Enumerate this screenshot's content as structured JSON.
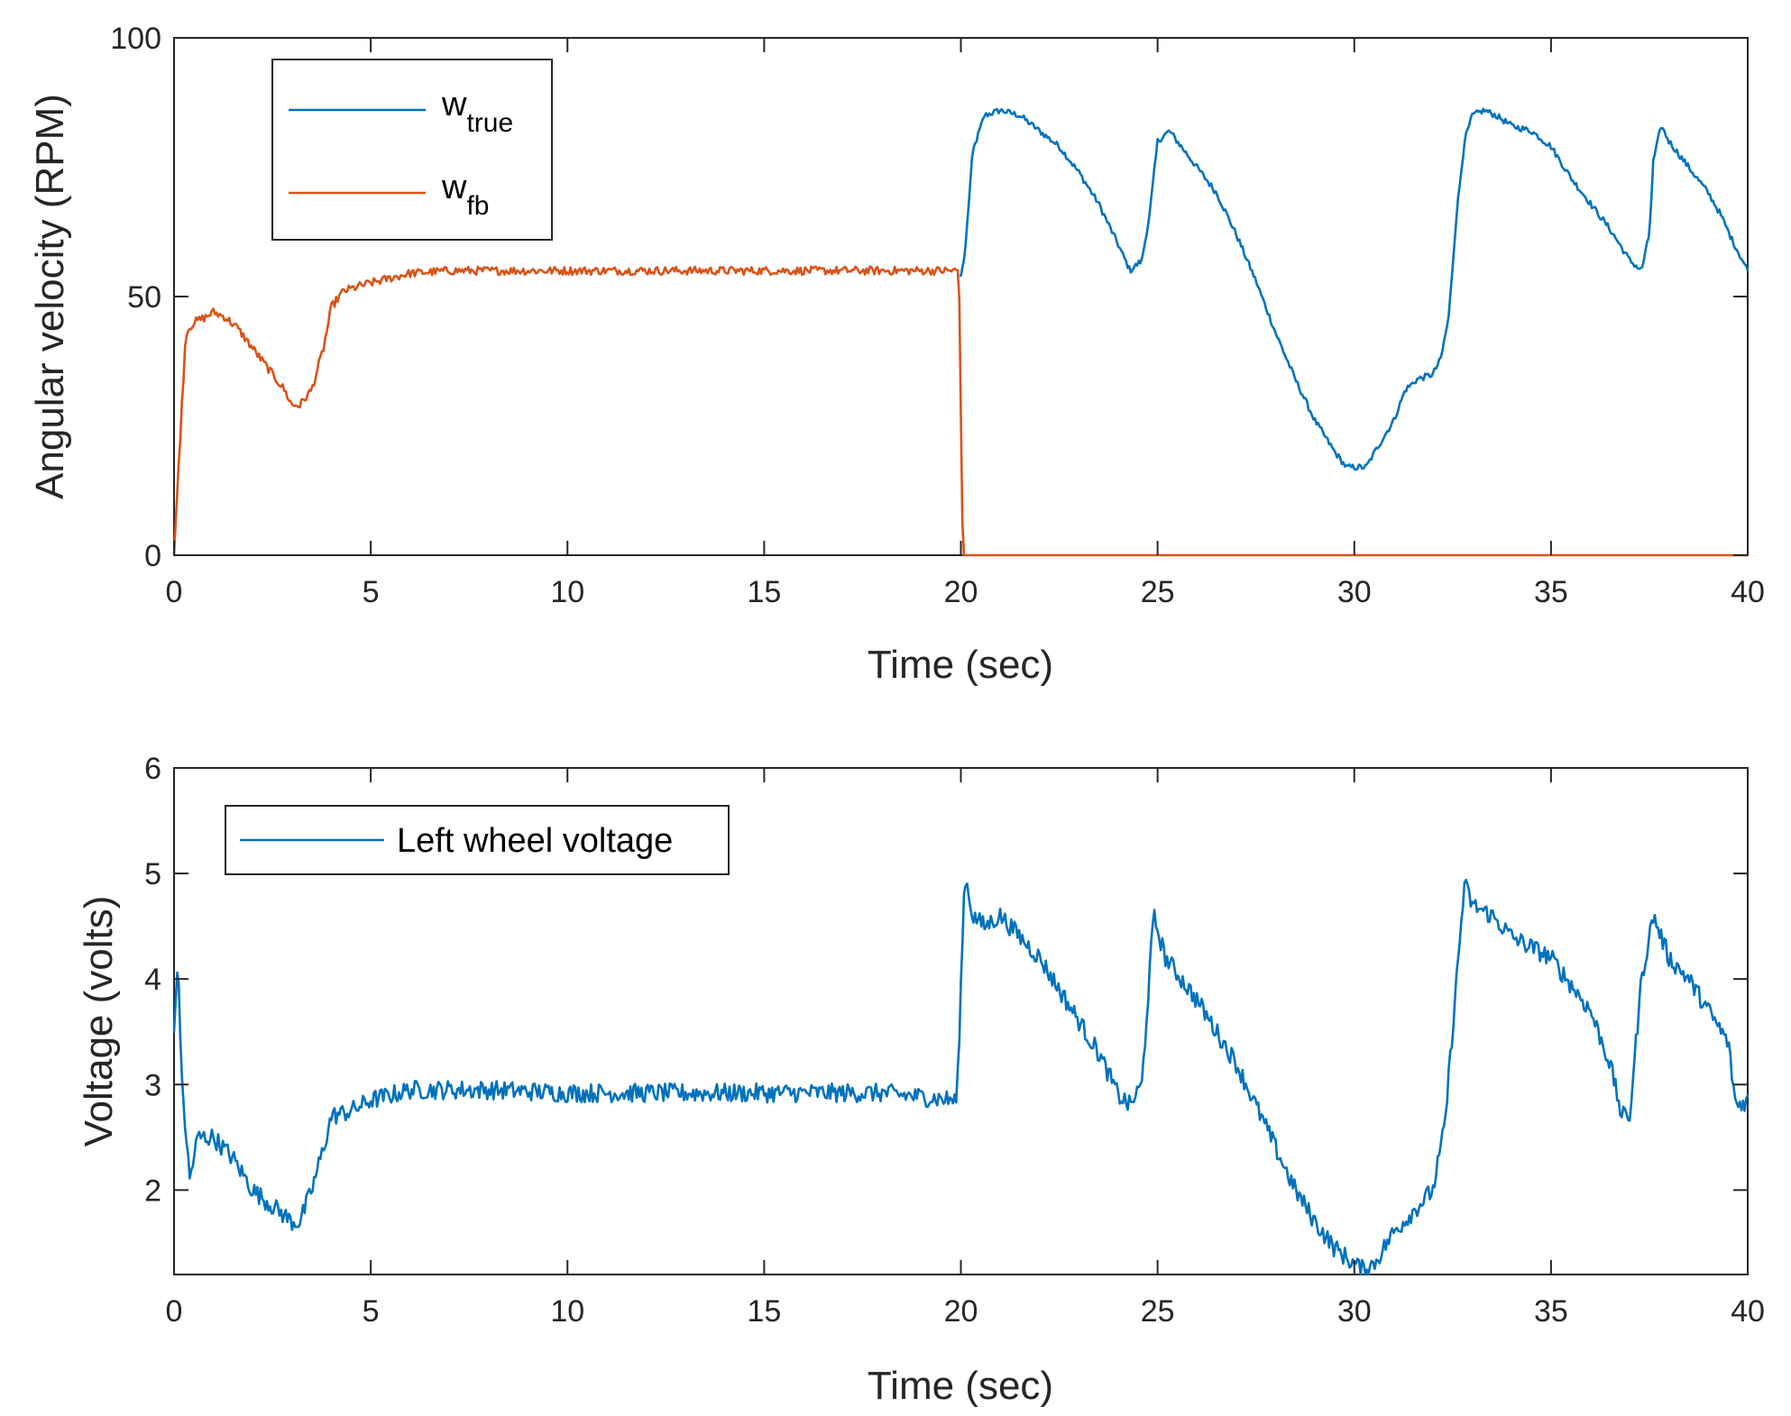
{
  "colors": {
    "blue": "#0072BD",
    "orange": "#D95319",
    "axis": "#262626"
  },
  "chart_data": [
    {
      "type": "line",
      "xlabel": "Time (sec)",
      "ylabel": "Angular velocity (RPM)",
      "xlim": [
        0,
        40
      ],
      "ylim": [
        0,
        100
      ],
      "xticks": [
        0,
        5,
        10,
        15,
        20,
        25,
        30,
        35,
        40
      ],
      "yticks": [
        0,
        50,
        100
      ],
      "legend": {
        "placement": "top-left",
        "entries": [
          {
            "base": "w",
            "sub": "true"
          },
          {
            "base": "w",
            "sub": "fb"
          }
        ]
      },
      "series": [
        {
          "name": "w_true",
          "color": "#0072BD",
          "noise": 0.6,
          "x": [
            20,
            20.1,
            20.3,
            20.6,
            21,
            21.5,
            22,
            22.5,
            23,
            23.5,
            24,
            24.3,
            24.6,
            24.8,
            25,
            25.3,
            25.8,
            26.5,
            27,
            27.5,
            28,
            28.5,
            29,
            29.5,
            29.8,
            30,
            30.3,
            30.6,
            31,
            31.3,
            31.6,
            32,
            32.2,
            32.4,
            32.6,
            32.8,
            33,
            33.3,
            33.6,
            34,
            34.5,
            35,
            35.5,
            36,
            36.5,
            37,
            37.3,
            37.5,
            37.6,
            37.8,
            38,
            38.3,
            38.6,
            39,
            39.3,
            39.6,
            40
          ],
          "y": [
            54,
            58,
            78,
            85,
            86,
            85,
            82,
            79,
            74,
            68,
            60,
            55,
            57,
            66,
            80,
            82,
            77,
            70,
            62,
            53,
            43,
            34,
            26,
            20,
            17,
            17,
            17,
            21,
            26,
            32,
            34,
            35,
            38,
            46,
            66,
            80,
            85,
            86,
            85,
            83,
            82,
            79,
            73,
            68,
            63,
            57,
            55,
            62,
            76,
            83,
            80,
            77,
            74,
            70,
            66,
            61,
            55
          ]
        },
        {
          "name": "w_fb",
          "color": "#D95319",
          "noise": 0.8,
          "x": [
            0,
            0.1,
            0.3,
            0.5,
            0.8,
            1,
            1.3,
            1.6,
            2,
            2.4,
            2.8,
            3,
            3.2,
            3.5,
            3.8,
            4,
            4.3,
            4.7,
            5.2,
            6,
            7,
            8,
            10,
            12,
            14,
            16,
            18,
            19.5,
            19.95,
            20.05,
            20.1,
            40
          ],
          "y": [
            0,
            15,
            43,
            45,
            46,
            47,
            46,
            44,
            40,
            36,
            32,
            29,
            29,
            32,
            40,
            48,
            51,
            52,
            53,
            54.5,
            55,
            55,
            55,
            55,
            55,
            55,
            55,
            55,
            55,
            0,
            0,
            0
          ]
        }
      ]
    },
    {
      "type": "line",
      "xlabel": "Time (sec)",
      "ylabel": "Voltage (volts)",
      "xlim": [
        0,
        40
      ],
      "ylim": [
        1.2,
        6
      ],
      "xticks": [
        0,
        5,
        10,
        15,
        20,
        25,
        30,
        35,
        40
      ],
      "yticks": [
        2,
        3,
        4,
        5,
        6
      ],
      "legend": {
        "placement": "top-left",
        "entries": [
          {
            "base": "Left wheel voltage",
            "sub": ""
          }
        ]
      },
      "series": [
        {
          "name": "Left wheel voltage",
          "color": "#0072BD",
          "noise": 0.09,
          "x": [
            0,
            0.1,
            0.2,
            0.4,
            0.6,
            1,
            1.5,
            2,
            2.5,
            3,
            3.2,
            3.5,
            3.8,
            4,
            4.5,
            5,
            6,
            8,
            10,
            12,
            14,
            16,
            18,
            19.9,
            20.1,
            20.3,
            20.6,
            21,
            21.5,
            22,
            23,
            23.5,
            24,
            24.3,
            24.6,
            24.9,
            25.2,
            25.6,
            26,
            26.5,
            27,
            27.5,
            28,
            28.5,
            29,
            29.5,
            30,
            30.2,
            30.5,
            31,
            31.5,
            32,
            32.3,
            32.6,
            32.8,
            33,
            33.5,
            34,
            35,
            36,
            36.5,
            36.8,
            37,
            37.3,
            37.6,
            38,
            38.5,
            39,
            39.5,
            39.7,
            40
          ],
          "y": [
            3.5,
            4.2,
            3.0,
            2.1,
            2.5,
            2.5,
            2.3,
            2.0,
            1.85,
            1.7,
            1.7,
            2.0,
            2.4,
            2.7,
            2.75,
            2.85,
            2.95,
            2.95,
            2.92,
            2.92,
            2.92,
            2.92,
            2.92,
            2.85,
            5.0,
            4.6,
            4.5,
            4.6,
            4.4,
            4.2,
            3.6,
            3.3,
            2.9,
            2.8,
            3.0,
            4.6,
            4.2,
            4.0,
            3.8,
            3.5,
            3.2,
            2.8,
            2.4,
            2.0,
            1.7,
            1.45,
            1.3,
            1.25,
            1.3,
            1.6,
            1.8,
            2.0,
            2.6,
            4.0,
            4.9,
            4.7,
            4.6,
            4.4,
            4.2,
            3.7,
            3.2,
            2.7,
            2.7,
            4.0,
            4.6,
            4.2,
            4.0,
            3.7,
            3.4,
            2.8,
            2.85
          ]
        }
      ]
    }
  ]
}
